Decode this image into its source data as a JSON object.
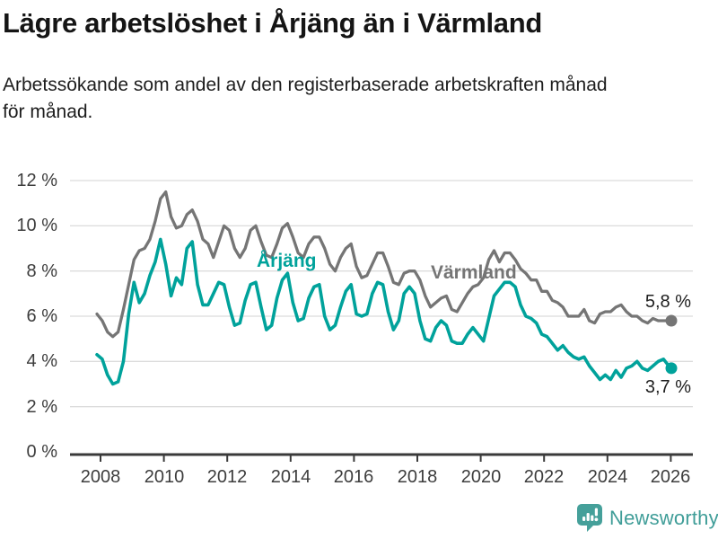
{
  "header": {
    "title": "Lägre arbetslöshet i Årjäng än i Värmland",
    "subtitle_lines": [
      "Arbetssökande som andel av den registerbaserade arbetskraften månad",
      "för månad."
    ]
  },
  "chart_data": {
    "type": "line",
    "title": "Lägre arbetslöshet i Årjäng än i Värmland",
    "xlabel": "",
    "ylabel": "",
    "y_unit": "%",
    "ylim": [
      0,
      12
    ],
    "xlim": [
      2007.9,
      2026.7
    ],
    "grid": "horizontal",
    "legend": "inline-labels",
    "y_ticks": [
      0,
      2,
      4,
      6,
      8,
      10,
      12
    ],
    "y_tick_suffix": " %",
    "x_ticks": [
      2008,
      2010,
      2012,
      2014,
      2016,
      2018,
      2020,
      2022,
      2024,
      2026
    ],
    "x_start": 2008.0,
    "x_step_years": 0.16667,
    "x_last": 2026.08,
    "series": [
      {
        "name": "Värmland",
        "color": "#757575",
        "end_value": 5.8,
        "end_label": "5,8 %",
        "values": [
          6.1,
          5.8,
          5.3,
          5.1,
          5.3,
          6.3,
          7.4,
          8.5,
          8.9,
          9.0,
          9.4,
          10.2,
          11.2,
          11.5,
          10.4,
          9.9,
          10.0,
          10.5,
          10.7,
          10.2,
          9.4,
          9.2,
          8.6,
          9.3,
          10.0,
          9.8,
          9.0,
          8.6,
          9.0,
          9.8,
          10.0,
          9.3,
          8.7,
          8.6,
          9.2,
          9.9,
          10.1,
          9.5,
          8.8,
          8.6,
          9.2,
          9.5,
          9.5,
          9.0,
          8.3,
          8.0,
          8.6,
          9.0,
          9.2,
          8.2,
          7.7,
          7.8,
          8.3,
          8.8,
          8.8,
          8.2,
          7.5,
          7.4,
          7.9,
          8.0,
          8.0,
          7.6,
          6.9,
          6.4,
          6.6,
          6.8,
          6.9,
          6.3,
          6.2,
          6.6,
          7.0,
          7.3,
          7.4,
          7.7,
          8.5,
          8.9,
          8.4,
          8.8,
          8.8,
          8.5,
          8.1,
          7.9,
          7.6,
          7.6,
          7.1,
          7.1,
          6.7,
          6.6,
          6.4,
          6.0,
          6.0,
          6.0,
          6.3,
          5.8,
          5.7,
          6.1,
          6.2,
          6.2,
          6.4,
          6.5,
          6.2,
          6.0,
          6.0,
          5.8,
          5.7,
          5.9,
          5.8,
          5.8,
          5.8,
          5.8
        ]
      },
      {
        "name": "Årjäng",
        "color": "#00A29B",
        "end_value": 3.7,
        "end_label": "3,7 %",
        "values": [
          4.3,
          4.1,
          3.4,
          3.0,
          3.1,
          4.0,
          6.1,
          7.5,
          6.6,
          7.0,
          7.8,
          8.4,
          9.4,
          8.3,
          6.9,
          7.7,
          7.4,
          9.0,
          9.3,
          7.4,
          6.5,
          6.5,
          7.0,
          7.5,
          7.4,
          6.4,
          5.6,
          5.7,
          6.7,
          7.4,
          7.5,
          6.4,
          5.4,
          5.6,
          6.8,
          7.6,
          7.9,
          6.6,
          5.8,
          5.9,
          6.8,
          7.3,
          7.4,
          6.0,
          5.4,
          5.6,
          6.4,
          7.1,
          7.4,
          6.1,
          6.0,
          6.1,
          7.0,
          7.5,
          7.4,
          6.2,
          5.4,
          5.8,
          7.0,
          7.3,
          7.0,
          5.8,
          5.0,
          4.9,
          5.5,
          5.8,
          5.6,
          4.9,
          4.8,
          4.8,
          5.2,
          5.5,
          5.2,
          4.9,
          5.9,
          6.9,
          7.2,
          7.5,
          7.5,
          7.3,
          6.5,
          6.0,
          5.9,
          5.7,
          5.2,
          5.1,
          4.8,
          4.5,
          4.7,
          4.4,
          4.2,
          4.1,
          4.2,
          3.8,
          3.5,
          3.2,
          3.4,
          3.2,
          3.6,
          3.3,
          3.7,
          3.8,
          4.0,
          3.7,
          3.6,
          3.8,
          4.0,
          4.1,
          3.8,
          3.7
        ]
      }
    ]
  },
  "footer": {
    "brand": "Newsworthy"
  },
  "colors": {
    "accent_teal": "#00A29B",
    "line_gray": "#757575",
    "grid_line": "#DCDCDC",
    "axis_line": "#3A3A3A",
    "axis_text": "#3D3D3D",
    "title_text": "#151515",
    "logo_teal": "#45A09A"
  }
}
